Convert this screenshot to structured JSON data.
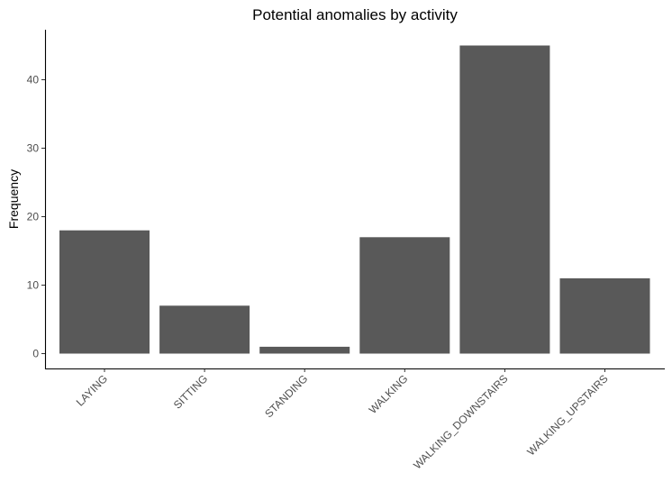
{
  "chart_data": {
    "type": "bar",
    "title": "Potential anomalies by activity",
    "xlabel": "",
    "ylabel": "Frequency",
    "categories": [
      "LAYING",
      "SITTING",
      "STANDING",
      "WALKING",
      "WALKING_DOWNSTAIRS",
      "WALKING_UPSTAIRS"
    ],
    "values": [
      18,
      7,
      1,
      17,
      45,
      11
    ],
    "yticks": [
      0,
      10,
      20,
      30,
      40
    ],
    "ylim": [
      0,
      47.25
    ],
    "grid": false,
    "legend": "none",
    "bar_color": "#595959"
  }
}
